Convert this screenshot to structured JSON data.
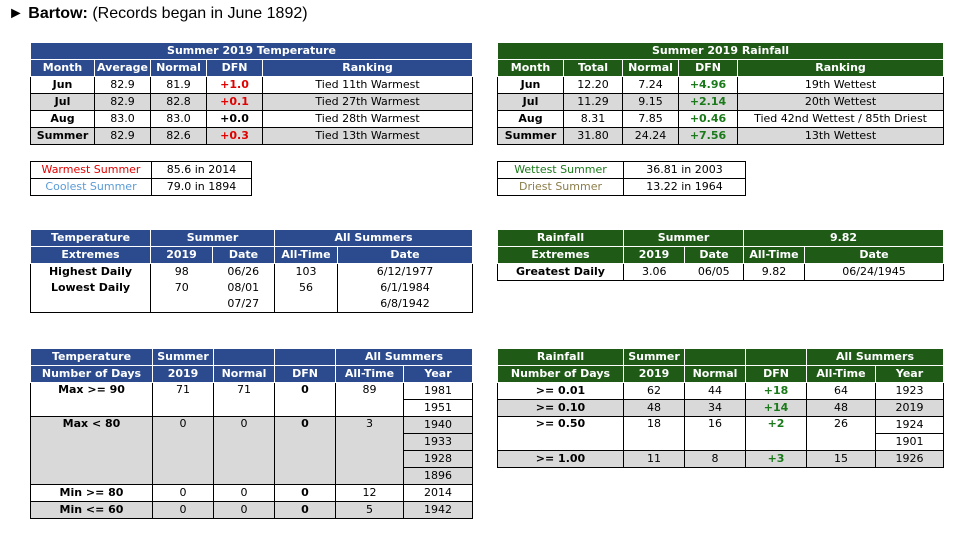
{
  "header": {
    "arrow": "►",
    "station": "Bartow:",
    "note": "(Records began in June 1892)"
  },
  "temp_summary": {
    "title": "Summer 2019 Temperature",
    "cols": [
      "Month",
      "Average",
      "Normal",
      "DFN",
      "Ranking"
    ],
    "rows": [
      {
        "month": "Jun",
        "avg": "82.9",
        "normal": "81.9",
        "dfn": "+1.0",
        "rank": "Tied 11th Warmest"
      },
      {
        "month": "Jul",
        "avg": "82.9",
        "normal": "82.8",
        "dfn": "+0.1",
        "rank": "Tied 27th Warmest"
      },
      {
        "month": "Aug",
        "avg": "83.0",
        "normal": "83.0",
        "dfn": "+0.0",
        "rank": "Tied 28th Warmest"
      },
      {
        "month": "Summer",
        "avg": "82.9",
        "normal": "82.6",
        "dfn": "+0.3",
        "rank": "Tied 13th Warmest"
      }
    ]
  },
  "rain_summary": {
    "title": "Summer 2019 Rainfall",
    "cols": [
      "Month",
      "Total",
      "Normal",
      "DFN",
      "Ranking"
    ],
    "rows": [
      {
        "month": "Jun",
        "total": "12.20",
        "normal": "7.24",
        "dfn": "+4.96",
        "rank": "19th Wettest"
      },
      {
        "month": "Jul",
        "total": "11.29",
        "normal": "9.15",
        "dfn": "+2.14",
        "rank": "20th Wettest"
      },
      {
        "month": "Aug",
        "total": "8.31",
        "normal": "7.85",
        "dfn": "+0.46",
        "rank": "Tied 42nd Wettest / 85th Driest"
      },
      {
        "month": "Summer",
        "total": "31.80",
        "normal": "24.24",
        "dfn": "+7.56",
        "rank": "13th Wettest"
      }
    ]
  },
  "temp_records": {
    "warmest_label": "Warmest Summer",
    "warmest_value": "85.6 in 2014",
    "coolest_label": "Coolest Summer",
    "coolest_value": "79.0 in 1894"
  },
  "rain_records": {
    "wettest_label": "Wettest Summer",
    "wettest_value": "36.81 in 2003",
    "driest_label": "Driest Summer",
    "driest_value": "13.22 in 1964"
  },
  "temp_extremes": {
    "h1": "Temperature",
    "h2": "Extremes",
    "summer": "Summer",
    "all": "All Summers",
    "c2019": "2019",
    "cdate": "Date",
    "call": "All-Time",
    "cdate2": "Date",
    "hi_label": "Highest Daily",
    "hi_2019": "98",
    "hi_date": "06/26",
    "hi_all": "103",
    "hi_all_date": "6/12/1977",
    "lo_label": "Lowest Daily",
    "lo_2019": "70",
    "lo_date1": "08/01",
    "lo_date2": "07/27",
    "lo_all": "56",
    "lo_all_date1": "6/1/1984",
    "lo_all_date2": "6/8/1942"
  },
  "rain_extremes": {
    "h1": "Rainfall",
    "h2": "Extremes",
    "summer": "Summer",
    "all": "9.82",
    "c2019": "2019",
    "cdate": "Date",
    "call": "All-Time",
    "cdate2": "Date",
    "label": "Greatest Daily",
    "v2019": "3.06",
    "date": "06/05",
    "all_date": "06/24/1945"
  },
  "temp_days": {
    "h1": "Temperature",
    "h2": "Number of Days",
    "summer": "Summer",
    "c2019": "2019",
    "cnormal": "Normal",
    "cdfn": "DFN",
    "all": "All Summers",
    "call": "All-Time",
    "cyear": "Year",
    "r1": {
      "label": "Max >= 90",
      "v": "71",
      "n": "71",
      "d": "0",
      "a": "89",
      "y1": "1981",
      "y2": "1951"
    },
    "r2": {
      "label": "Max < 80",
      "v": "0",
      "n": "0",
      "d": "0",
      "a": "3",
      "y1": "1940",
      "y2": "1933",
      "y3": "1928",
      "y4": "1896"
    },
    "r3": {
      "label": "Min >= 80",
      "v": "0",
      "n": "0",
      "d": "0",
      "a": "12",
      "y1": "2014"
    },
    "r4": {
      "label": "Min <= 60",
      "v": "0",
      "n": "0",
      "d": "0",
      "a": "5",
      "y1": "1942"
    }
  },
  "rain_days": {
    "h1": "Rainfall",
    "h2": "Number of Days",
    "summer": "Summer",
    "c2019": "2019",
    "cnormal": "Normal",
    "cdfn": "DFN",
    "all": "All Summers",
    "call": "All-Time",
    "cyear": "Year",
    "r1": {
      "label": ">= 0.01",
      "v": "62",
      "n": "44",
      "d": "+18",
      "a": "64",
      "y1": "1923"
    },
    "r2": {
      "label": ">= 0.10",
      "v": "48",
      "n": "34",
      "d": "+14",
      "a": "48",
      "y1": "2019"
    },
    "r3": {
      "label": ">= 0.50",
      "v": "18",
      "n": "16",
      "d": "+2",
      "a": "26",
      "y1": "1924",
      "y2": "1901"
    },
    "r4": {
      "label": ">= 1.00",
      "v": "11",
      "n": "8",
      "d": "+3",
      "a": "15",
      "y1": "1926"
    }
  }
}
